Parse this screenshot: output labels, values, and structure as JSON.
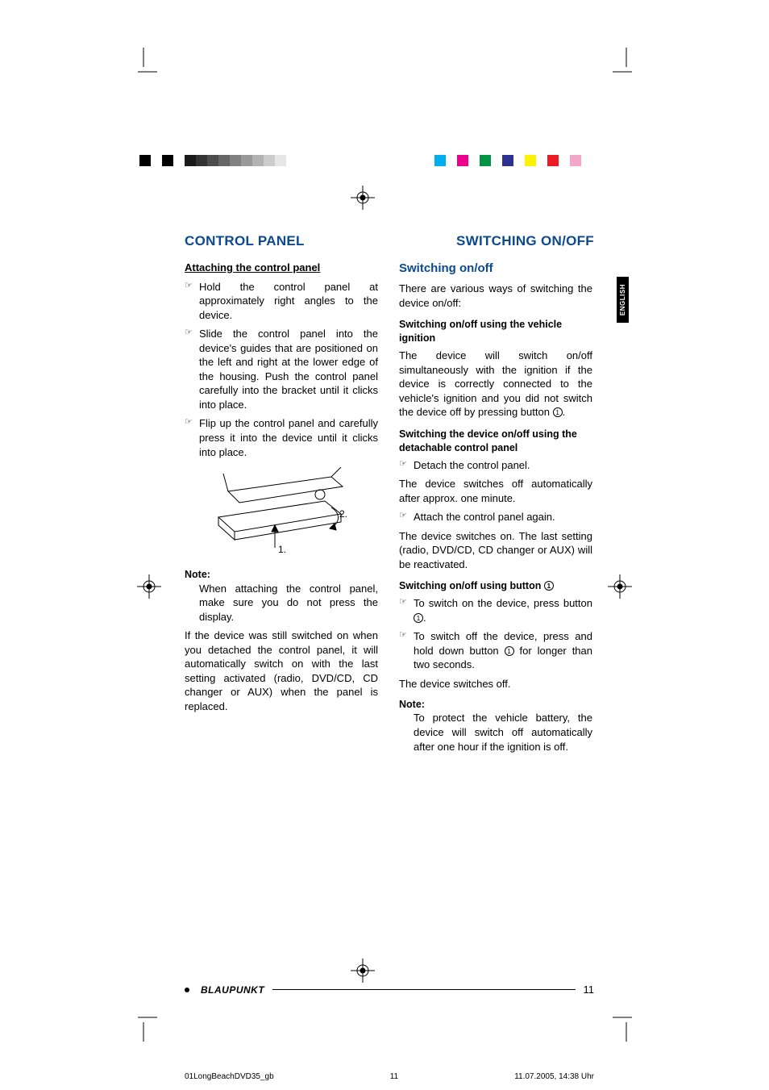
{
  "strips": {
    "left_colors": [
      "#000000",
      "#ffffff",
      "#000000",
      "#ffffff",
      "#1a1a1a",
      "#333333",
      "#4d4d4d",
      "#666666",
      "#808080",
      "#999999",
      "#b3b3b3",
      "#cccccc",
      "#e6e6e6",
      "#ffffff"
    ],
    "right_colors": [
      "#ffffff",
      "#00aeef",
      "#ffffff",
      "#ec008c",
      "#ffffff",
      "#009444",
      "#ffffff",
      "#2e3192",
      "#ffffff",
      "#fff200",
      "#ffffff",
      "#ed1c24",
      "#ffffff",
      "#f4a6c9",
      "#ffffff"
    ]
  },
  "lang_tab": "ENGLISH",
  "headings": {
    "left": "CONTROL PANEL",
    "right": "SWITCHING ON/OFF"
  },
  "left": {
    "attach_heading": "Attaching the control panel",
    "attach_items": [
      "Hold the control panel at approximately right angles to the device.",
      "Slide the control panel into the device's guides that are positioned on the left and right at the lower edge of the housing. Push the control panel carefully into the bracket until it clicks into place.",
      "Flip up the control panel and carefully press it into the device until it clicks into place."
    ],
    "diagram_labels": {
      "one": "1.",
      "two": "2."
    },
    "note_label": "Note:",
    "note_body": "When attaching the control panel, make sure you do not press the display.",
    "tail": "If the device was still switched on when you detached the control panel, it will automatically switch on with the last setting activated (radio, DVD/CD, CD changer or AUX) when the panel is replaced."
  },
  "right": {
    "title": "Switching on/off",
    "intro": "There are various ways of switching the device on/off:",
    "h1": "Switching on/off using the vehicle ignition",
    "p1a": "The device will switch on/off simultaneously with the ignition if the device is correctly connected to the vehicle's ignition and you did not switch the device off by pressing button ",
    "p1b": ".",
    "h2": "Switching the device on/off using the detachable control panel",
    "b2_item": "Detach the control panel.",
    "p2": "The device switches off automatically after approx. one minute.",
    "b3_item": "Attach the control panel again.",
    "p3": "The device switches on. The last setting (radio, DVD/CD, CD changer or AUX) will be reactivated.",
    "h3a": "Switching on/off using button ",
    "b4a": "To switch on the device, press button ",
    "b4b": ".",
    "b5a": "To switch off the device, press and hold down button ",
    "b5b": " for longer than two seconds.",
    "p4": "The device switches off.",
    "note_label": "Note:",
    "note_body": "To protect the vehicle battery, the device will switch off automatically after one hour if the ignition is off."
  },
  "ref_num": "1",
  "footer": {
    "brand": "BLAUPUNKT",
    "page": "11"
  },
  "meta": {
    "file": "01LongBeachDVD35_gb",
    "sheet": "11",
    "stamp": "11.07.2005, 14:38 Uhr"
  }
}
